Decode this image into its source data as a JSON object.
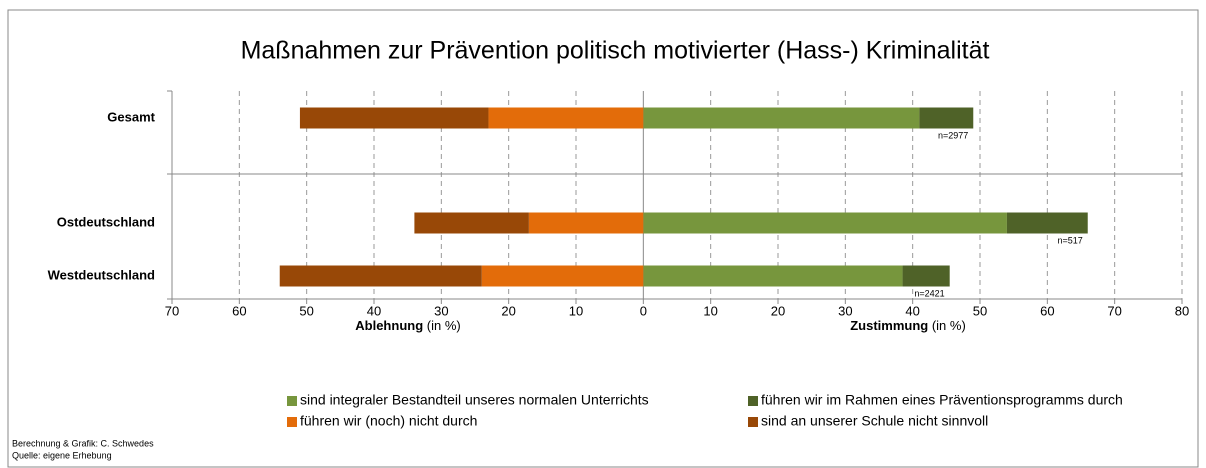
{
  "chart_data": {
    "type": "diverging_bar",
    "title": "Maßnahmen zur Prävention politisch motivierter (Hass-) Kriminalität",
    "categories": [
      "Gesamt",
      "Ostdeutschland",
      "Westdeutschland"
    ],
    "series": [
      {
        "name": "sind integraler Bestandteil unseres normalen Unterrichts",
        "color": "#77963d",
        "values": [
          41,
          54,
          38.5
        ]
      },
      {
        "name": "führen wir im Rahmen eines Präventionsprogramms durch",
        "color": "#4f6228",
        "values": [
          8,
          12,
          7
        ]
      },
      {
        "name": "führen wir (noch) nicht durch",
        "color": "#e36c0a",
        "values": [
          -23,
          -17,
          -24
        ]
      },
      {
        "name": "sind an unserer Schule nicht sinnvoll",
        "color": "#984807",
        "values": [
          -28,
          -17,
          -30
        ]
      }
    ],
    "annotations": [
      "n=2977",
      "n=517",
      "n=2421"
    ],
    "x_label_left": {
      "bold": "Ablehnung",
      "rest": "(in %)"
    },
    "x_label_right": {
      "bold": "Zustimmung",
      "rest": "(in %)"
    },
    "xlim": [
      -70,
      80
    ],
    "xticks": [
      {
        "value": -70,
        "label": "70"
      },
      {
        "value": -60,
        "label": "60"
      },
      {
        "value": -50,
        "label": "50"
      },
      {
        "value": -40,
        "label": "40"
      },
      {
        "value": -30,
        "label": "30"
      },
      {
        "value": -20,
        "label": "20"
      },
      {
        "value": -10,
        "label": "10"
      },
      0,
      10,
      20,
      30,
      40,
      50,
      60,
      70,
      80
    ],
    "grid": true,
    "footnotes": [
      "Berechnung & Grafik: C. Schwedes",
      "Quelle: eigene Erhebung"
    ]
  }
}
